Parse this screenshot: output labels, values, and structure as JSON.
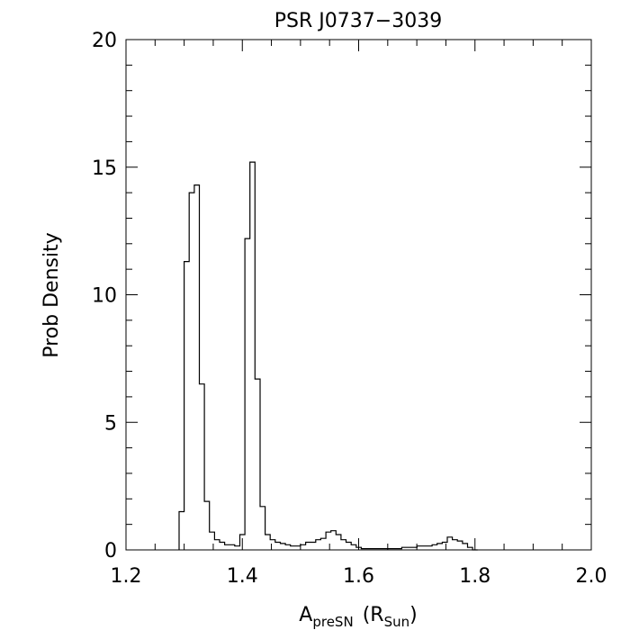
{
  "chart_data": {
    "type": "line",
    "style": "step-histogram",
    "title": "PSR J0737−3039",
    "xlabel": {
      "main": "A",
      "main_sub": "preSN",
      "unit_open": "(R",
      "unit_sub": "Sun",
      "unit_close": ")"
    },
    "ylabel": "Prob Density",
    "xlim": [
      1.2,
      2.0
    ],
    "ylim": [
      0,
      20
    ],
    "x_ticks": [
      1.2,
      1.4,
      1.6,
      1.8,
      2.0
    ],
    "x_tick_labels": [
      "1.2",
      "1.4",
      "1.6",
      "1.8",
      "2.0"
    ],
    "y_ticks": [
      0,
      5,
      10,
      15,
      20
    ],
    "y_tick_labels": [
      "0",
      "5",
      "10",
      "15",
      "20"
    ],
    "x_minor_step": 0.05,
    "y_minor_step": 1,
    "grid": false,
    "bin_start": 1.2913,
    "bin_width": 0.0087,
    "values": [
      1.5,
      11.3,
      14.0,
      14.3,
      6.5,
      1.9,
      0.7,
      0.4,
      0.3,
      0.2,
      0.2,
      0.15,
      0.6,
      12.2,
      15.2,
      6.7,
      1.7,
      0.6,
      0.4,
      0.3,
      0.25,
      0.2,
      0.15,
      0.15,
      0.2,
      0.3,
      0.3,
      0.4,
      0.45,
      0.7,
      0.75,
      0.6,
      0.4,
      0.3,
      0.2,
      0.1,
      0.05,
      0.05,
      0.05,
      0.05,
      0.05,
      0.05,
      0.05,
      0.05,
      0.1,
      0.1,
      0.1,
      0.15,
      0.15,
      0.15,
      0.2,
      0.25,
      0.3,
      0.5,
      0.4,
      0.35,
      0.25,
      0.1,
      0.0
    ],
    "color": "#000000"
  }
}
